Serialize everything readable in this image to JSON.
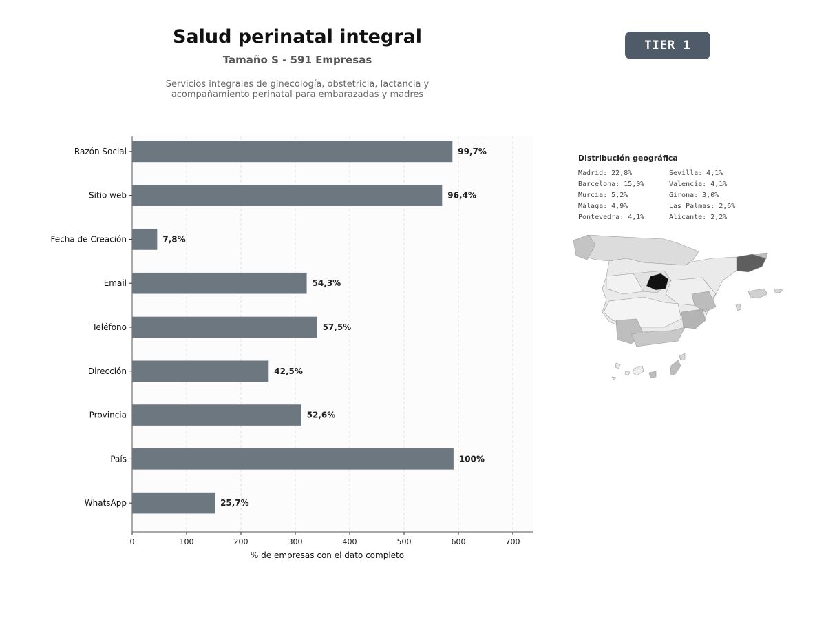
{
  "header": {
    "title": "Salud perinatal integral",
    "subtitle": "Tamaño S - 591 Empresas",
    "description": "Servicios integrales de ginecología, obstetricia, lactancia y\nacompañamiento perinatal para embarazadas y madres",
    "tier_label": "TIER 1"
  },
  "colors": {
    "bar": "#6c7780",
    "tier_bg": "#4f5b68",
    "map_highlight": "#111111",
    "map_secondary": "#5a5a5a"
  },
  "chart_data": {
    "type": "bar",
    "orientation": "horizontal",
    "categories": [
      "Razón Social",
      "Sitio web",
      "Fecha de Creación",
      "Email",
      "Teléfono",
      "Dirección",
      "Provincia",
      "País",
      "WhatsApp"
    ],
    "values": [
      589,
      570,
      46,
      321,
      340,
      251,
      311,
      591,
      152
    ],
    "value_labels": [
      "99,7%",
      "96,4%",
      "7,8%",
      "54,3%",
      "57,5%",
      "42,5%",
      "52,6%",
      "100%",
      "25,7%"
    ],
    "xlabel": "% de empresas con el dato completo",
    "ylabel": "",
    "xlim": [
      0,
      738
    ],
    "xticks": [
      0,
      100,
      200,
      300,
      400,
      500,
      600,
      700
    ],
    "grid": true
  },
  "geo": {
    "title": "Distribución geográfica",
    "columns": [
      [
        "Madrid: 22,8%",
        "Barcelona: 15,0%",
        "Murcia: 5,2%",
        "Málaga: 4,9%",
        "Pontevedra: 4,1%"
      ],
      [
        "Sevilla: 4,1%",
        "Valencia: 4,1%",
        "Girona: 3,0%",
        "Las Palmas: 2,6%",
        "Alicante: 2,2%"
      ]
    ]
  }
}
